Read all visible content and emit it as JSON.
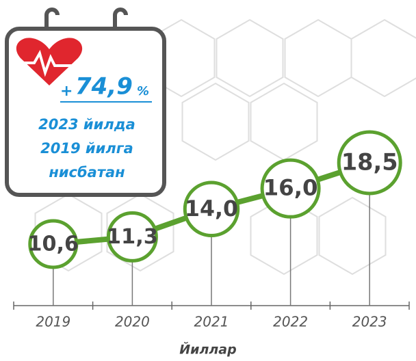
{
  "chart_data": {
    "type": "line",
    "categories": [
      "2019",
      "2020",
      "2021",
      "2022",
      "2023"
    ],
    "values": [
      10.6,
      11.3,
      14.0,
      16.0,
      18.5
    ],
    "value_labels": [
      "10,6",
      "11,3",
      "14,0",
      "16,0",
      "18,5"
    ],
    "color": "#5ba12f",
    "x_label": "Йиллар",
    "callout": {
      "sign": "+",
      "value": "74,9",
      "unit": "%",
      "lines": [
        "2023 йилда",
        "2019 йилга",
        "нисбатан"
      ]
    }
  }
}
